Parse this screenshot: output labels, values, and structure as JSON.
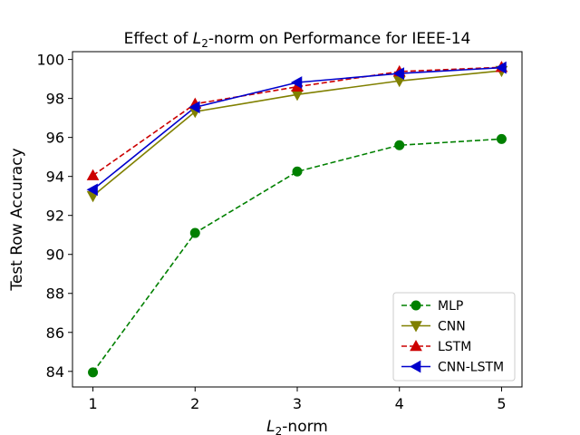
{
  "chart_data": {
    "type": "line",
    "title_prefix": "Effect of ",
    "title_suffix": "-norm on Performance for IEEE-14",
    "xlabel_suffix": "-norm",
    "norm_symbol": "L",
    "norm_subscript": "2",
    "ylabel": "Test Row Accuracy",
    "x": [
      1,
      2,
      3,
      4,
      5
    ],
    "xlim": [
      0.8,
      5.2
    ],
    "ylim": [
      83.2,
      100.4
    ],
    "xticks": [
      "1",
      "2",
      "3",
      "4",
      "5"
    ],
    "yticks": [
      "84",
      "86",
      "88",
      "90",
      "92",
      "94",
      "96",
      "98",
      "100"
    ],
    "grid": false,
    "legend_position": "lower-right",
    "series": [
      {
        "name": "MLP",
        "values": [
          83.95,
          91.1,
          94.25,
          95.6,
          95.92
        ],
        "color": "#008000",
        "dash": "dashed",
        "marker": "circle"
      },
      {
        "name": "CNN",
        "values": [
          93.0,
          97.32,
          98.2,
          98.9,
          99.42
        ],
        "color": "#808000",
        "dash": "solid",
        "marker": "triangle-down"
      },
      {
        "name": "LSTM",
        "values": [
          94.05,
          97.72,
          98.6,
          99.38,
          99.6
        ],
        "color": "#cc0000",
        "dash": "dashed",
        "marker": "triangle-up"
      },
      {
        "name": "CNN-LSTM",
        "values": [
          93.32,
          97.55,
          98.82,
          99.28,
          99.58
        ],
        "color": "#0000cc",
        "dash": "solid",
        "marker": "triangle-left"
      }
    ]
  }
}
